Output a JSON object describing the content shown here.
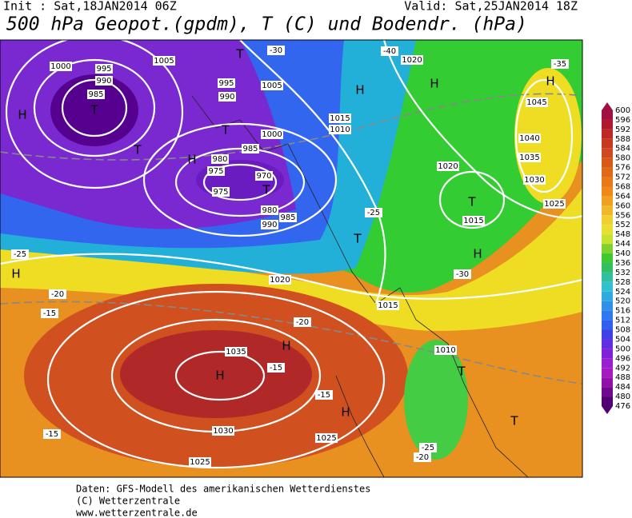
{
  "header": {
    "init": "Init : Sat,18JAN2014 06Z",
    "valid": "Valid: Sat,25JAN2014 18Z",
    "title": "500 hPa Geopot.(gpdm), T (C) und Bodendr. (hPa)"
  },
  "colorbar": {
    "levels": [
      600,
      596,
      592,
      588,
      584,
      580,
      576,
      572,
      568,
      564,
      560,
      556,
      552,
      548,
      544,
      540,
      536,
      532,
      528,
      524,
      520,
      516,
      512,
      508,
      504,
      500,
      496,
      492,
      488,
      484,
      480,
      476
    ],
    "colors": [
      "#a01040",
      "#b01830",
      "#c02828",
      "#c83820",
      "#d04820",
      "#d85818",
      "#e06818",
      "#e87818",
      "#f08818",
      "#f0a020",
      "#f0b828",
      "#f0d030",
      "#e8e030",
      "#c8e030",
      "#80d030",
      "#40c830",
      "#30c060",
      "#30c0a0",
      "#30c0d0",
      "#30a8e0",
      "#3090e8",
      "#3078f0",
      "#3060f0",
      "#4040e8",
      "#6030e0",
      "#8020d8",
      "#9820d0",
      "#a818c0",
      "#9010a8",
      "#700890",
      "#500070"
    ]
  },
  "map_labels": [
    "995",
    "990",
    "985",
    "T",
    "1000",
    "1005",
    "995",
    "990",
    "1005",
    "1000",
    "985",
    "980",
    "975",
    "970",
    "975",
    "T",
    "980",
    "985",
    "990",
    "1015",
    "1010",
    "1020",
    "1020",
    "1015",
    "1045",
    "1040",
    "1035",
    "1030",
    "1025",
    "1035",
    "H",
    "1030",
    "1025",
    "1025",
    "1020",
    "1015",
    "1010",
    "H",
    "H",
    "H",
    "H",
    "H",
    "H",
    "H",
    "H",
    "H",
    "T",
    "T",
    "T",
    "T",
    "T",
    "T",
    "T",
    "-40",
    "-35",
    "-30",
    "-25",
    "-20",
    "-15",
    "-15",
    "-15",
    "-15",
    "-20",
    "-25",
    "-30",
    "-25",
    "-20"
  ],
  "footer": [
    "Daten: GFS-Modell des amerikanischen Wetterdienstes",
    "(C) Wetterzentrale",
    "www.wetterzentrale.de"
  ]
}
